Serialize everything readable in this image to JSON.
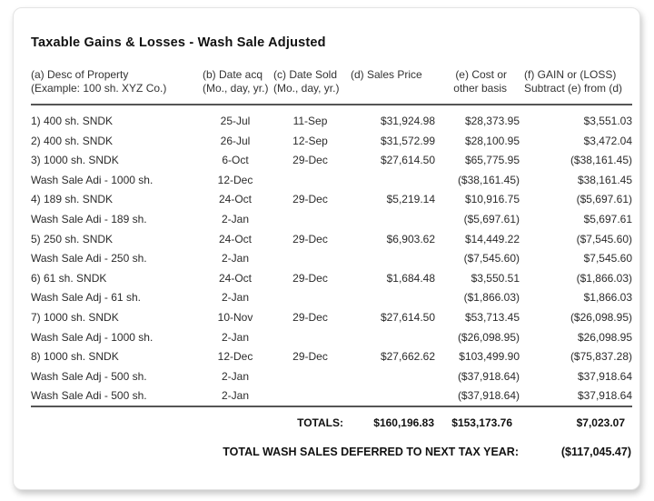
{
  "title": "Taxable Gains & Losses - Wash Sale Adjusted",
  "colors": {
    "card_background": "#ffffff",
    "page_background": "#ffffff",
    "text": "#2b2b2b",
    "divider": "#555555",
    "card_border": "#e4e4e4"
  },
  "table": {
    "columns": [
      {
        "line1": "(a) Desc of Property",
        "line2": "(Example: 100 sh. XYZ Co.)"
      },
      {
        "line1": "(b) Date acq",
        "line2": "(Mo., day, yr.)"
      },
      {
        "line1": "(c) Date Sold",
        "line2": "(Mo., day, yr.)"
      },
      {
        "line1": "(d) Sales Price",
        "line2": ""
      },
      {
        "line1": "(e) Cost or",
        "line2": "other basis"
      },
      {
        "line1": "(f) GAIN or (LOSS)",
        "line2": "Subtract (e) from (d)"
      }
    ],
    "rows": [
      {
        "desc": "1) 400 sh. SNDK",
        "date_acq": "25-Jul",
        "date_sold": "11-Sep",
        "sales_price": "$31,924.98",
        "cost": "$28,373.95",
        "gain": "$3,551.03"
      },
      {
        "desc": "2) 400 sh. SNDK",
        "date_acq": "26-Jul",
        "date_sold": "12-Sep",
        "sales_price": "$31,572.99",
        "cost": "$28,100.95",
        "gain": "$3,472.04"
      },
      {
        "desc": "3) 1000 sh. SNDK",
        "date_acq": "6-Oct",
        "date_sold": "29-Dec",
        "sales_price": "$27,614.50",
        "cost": "$65,775.95",
        "gain": "($38,161.45)"
      },
      {
        "desc": "Wash Sale Adi - 1000 sh.",
        "date_acq": "12-Dec",
        "date_sold": "",
        "sales_price": "",
        "cost": "($38,161.45)",
        "gain": "$38,161.45"
      },
      {
        "desc": "4) 189 sh. SNDK",
        "date_acq": "24-Oct",
        "date_sold": "29-Dec",
        "sales_price": "$5,219.14",
        "cost": "$10,916.75",
        "gain": "($5,697.61)"
      },
      {
        "desc": "Wash Sale Adi - 189 sh.",
        "date_acq": "2-Jan",
        "date_sold": "",
        "sales_price": "",
        "cost": "($5,697.61)",
        "gain": "$5,697.61"
      },
      {
        "desc": "5) 250 sh. SNDK",
        "date_acq": "24-Oct",
        "date_sold": "29-Dec",
        "sales_price": "$6,903.62",
        "cost": "$14,449.22",
        "gain": "($7,545.60)"
      },
      {
        "desc": "Wash Sale Adi - 250 sh.",
        "date_acq": "2-Jan",
        "date_sold": "",
        "sales_price": "",
        "cost": "($7,545.60)",
        "gain": "$7,545.60"
      },
      {
        "desc": "6) 61 sh. SNDK",
        "date_acq": "24-Oct",
        "date_sold": "29-Dec",
        "sales_price": "$1,684.48",
        "cost": "$3,550.51",
        "gain": "($1,866.03)"
      },
      {
        "desc": "Wash Sale Adj - 61 sh.",
        "date_acq": "2-Jan",
        "date_sold": "",
        "sales_price": "",
        "cost": "($1,866.03)",
        "gain": "$1,866.03"
      },
      {
        "desc": "7) 1000 sh. SNDK",
        "date_acq": "10-Nov",
        "date_sold": "29-Dec",
        "sales_price": "$27,614.50",
        "cost": "$53,713.45",
        "gain": "($26,098.95)"
      },
      {
        "desc": "Wash Sale Adj - 1000 sh.",
        "date_acq": "2-Jan",
        "date_sold": "",
        "sales_price": "",
        "cost": "($26,098.95)",
        "gain": "$26,098.95"
      },
      {
        "desc": "8) 1000 sh. SNDK",
        "date_acq": "12-Dec",
        "date_sold": "29-Dec",
        "sales_price": "$27,662.62",
        "cost": "$103,499.90",
        "gain": "($75,837.28)"
      },
      {
        "desc": "Wash Sale Adj - 500 sh.",
        "date_acq": "2-Jan",
        "date_sold": "",
        "sales_price": "",
        "cost": "($37,918.64)",
        "gain": "$37,918.64"
      },
      {
        "desc": "Wash Sale Adi - 500 sh.",
        "date_acq": "2-Jan",
        "date_sold": "",
        "sales_price": "",
        "cost": "($37,918.64)",
        "gain": "$37,918.64"
      }
    ],
    "totals": {
      "label": "TOTALS:",
      "sales_price": "$160,196.83",
      "cost": "$153,173.76",
      "gain": "$7,023.07"
    },
    "deferred": {
      "label": "TOTAL WASH SALES DEFERRED TO NEXT TAX YEAR:",
      "value": "($117,045.47)"
    }
  }
}
